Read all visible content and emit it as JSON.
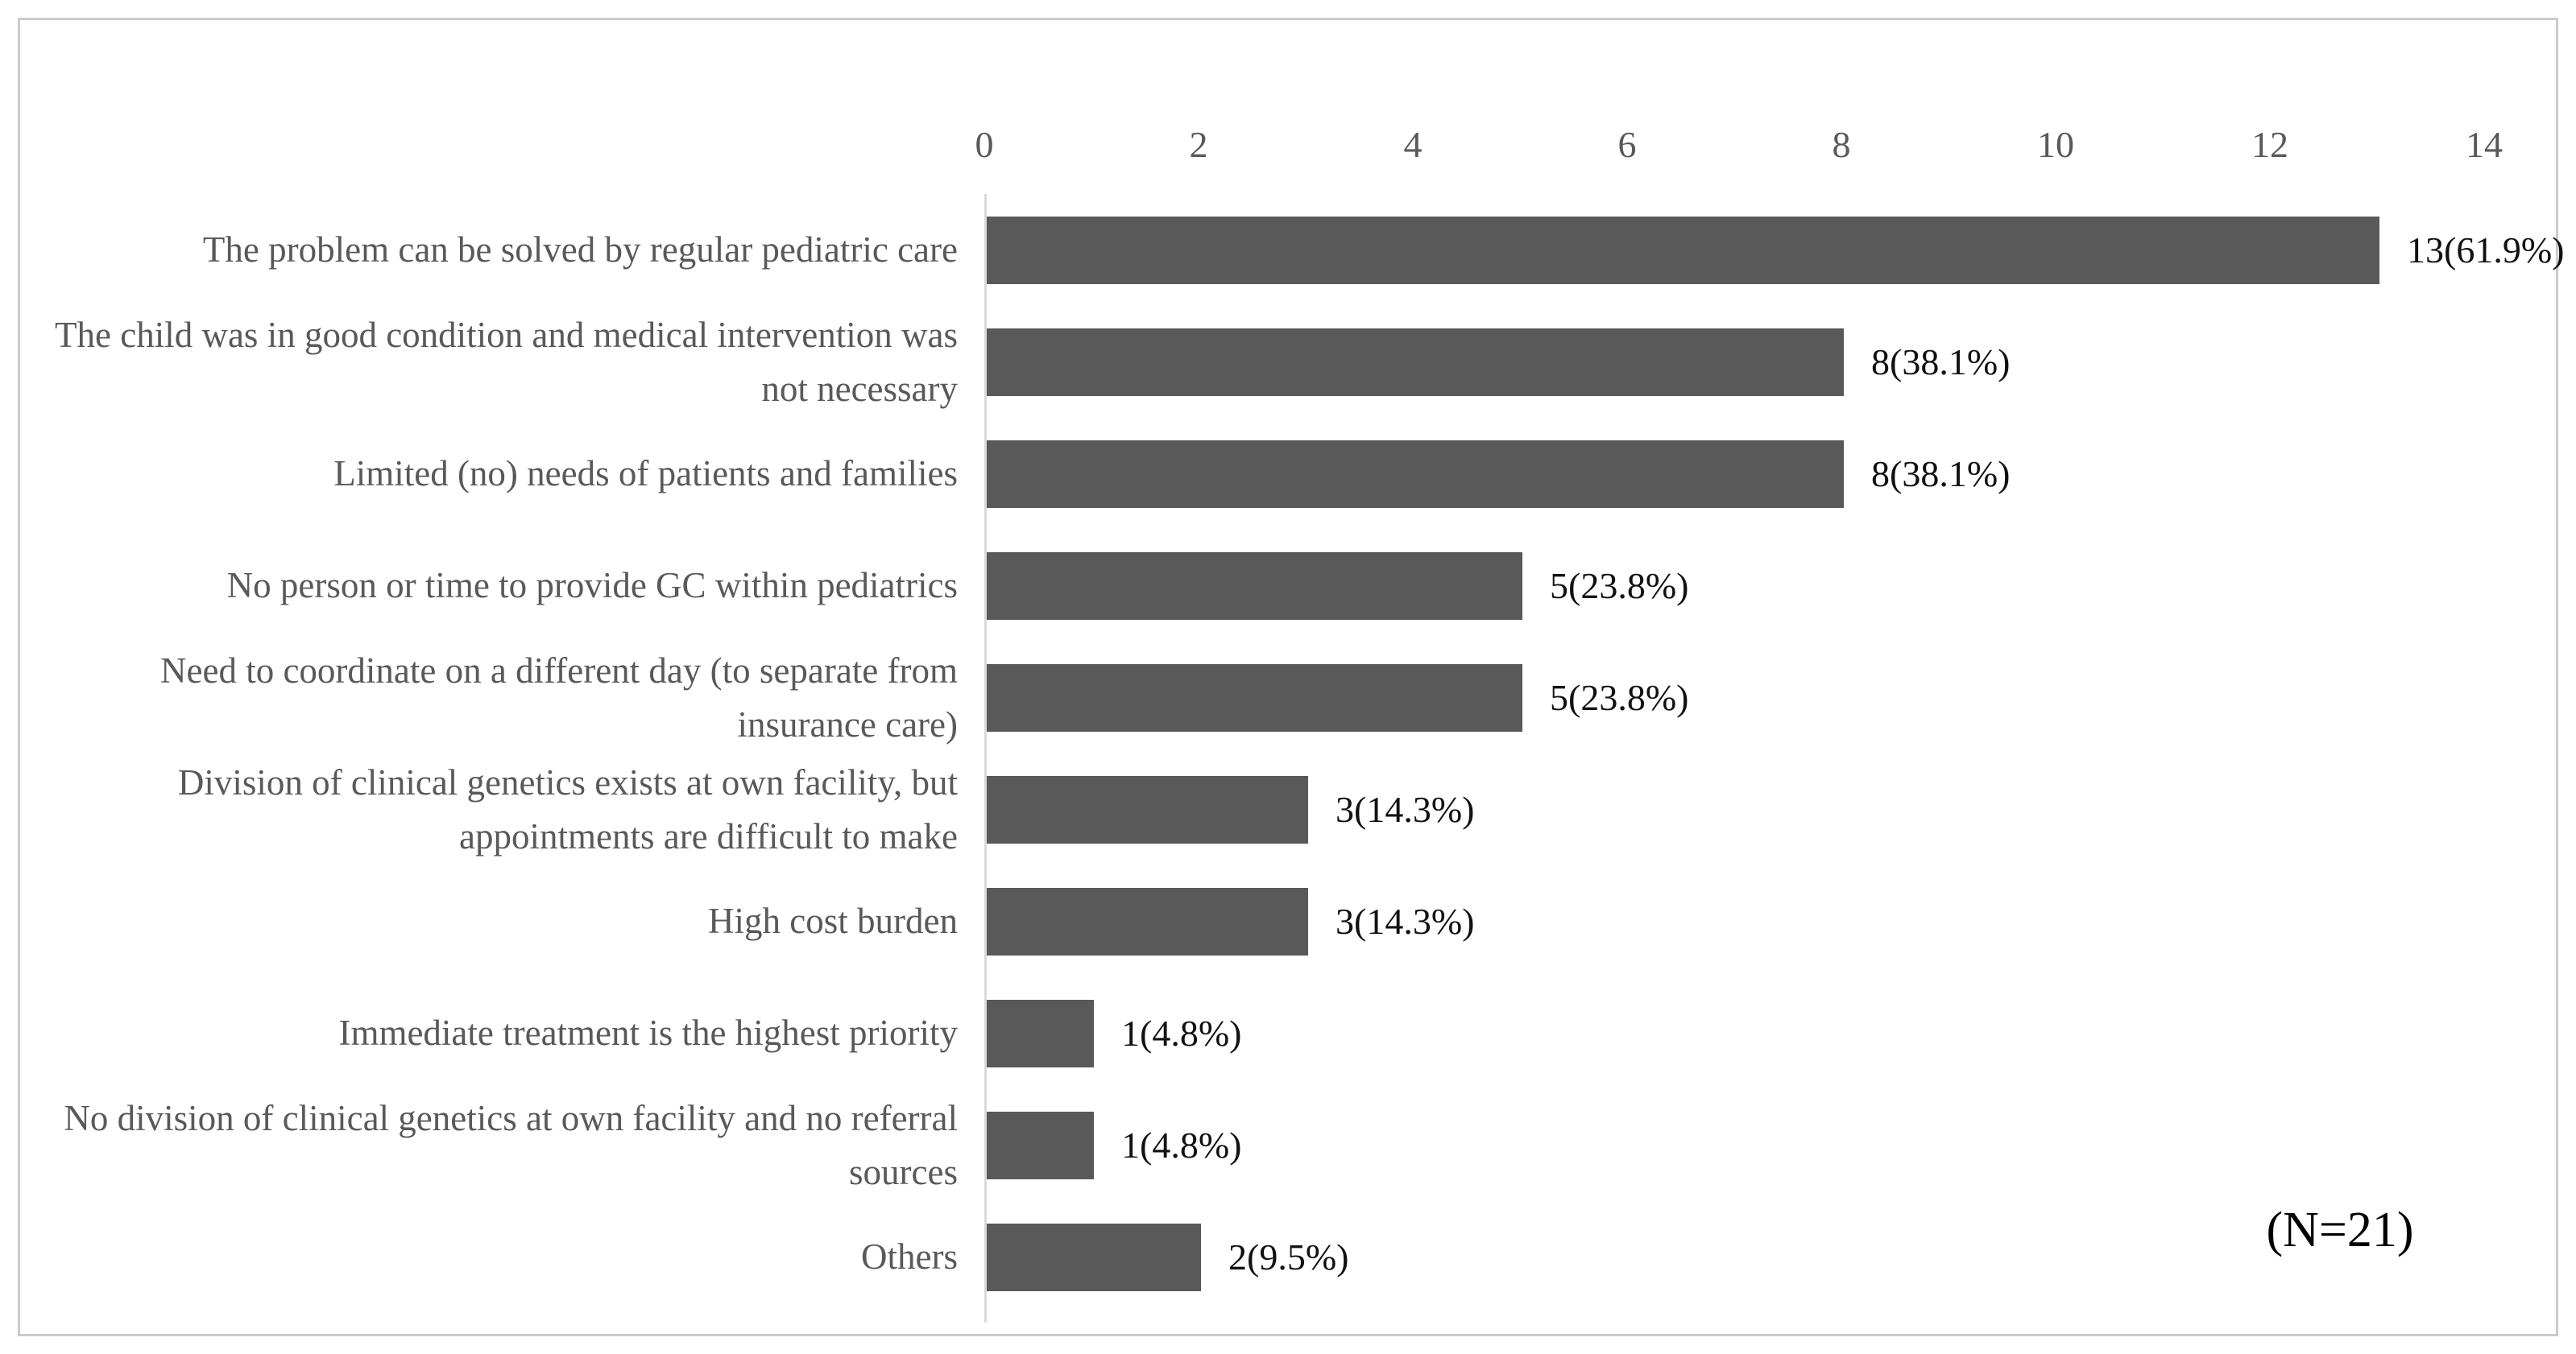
{
  "chart_data": {
    "type": "bar",
    "orientation": "horizontal",
    "title": "",
    "xlabel": "",
    "ylabel": "",
    "xlim": [
      0,
      14
    ],
    "x_ticks": [
      "0",
      "2",
      "4",
      "6",
      "8",
      "10",
      "12",
      "14"
    ],
    "grid": false,
    "legend": "none",
    "categories": [
      "The problem can be solved by regular pediatric care",
      "The child was in good condition and medical intervention was not necessary",
      "Limited (no) needs of patients and families",
      "No person or time to provide GC within pediatrics",
      "Need to coordinate on a different day (to separate from insurance care)",
      "Division of clinical genetics exists at own facility, but appointments are difficult to make",
      "High cost burden",
      "Immediate treatment is the highest priority",
      "No division of clinical genetics at own facility and no referral sources",
      "Others"
    ],
    "values": [
      13,
      8,
      8,
      5,
      5,
      3,
      3,
      1,
      1,
      2
    ],
    "value_labels": [
      "13(61.9%)",
      "8(38.1%)",
      "8(38.1%)",
      "5(23.8%)",
      "5(23.8%)",
      "3(14.3%)",
      "3(14.3%)",
      "1(4.8%)",
      "1(4.8%)",
      "2(9.5%)"
    ],
    "annotation": "(N=21)",
    "colors": {
      "bar": "#595959",
      "axis_line": "#d9d9d9",
      "category_text": "#595959",
      "tick_text": "#595959",
      "value_text": "#111111",
      "frame_border": "#cbcbcb"
    }
  }
}
